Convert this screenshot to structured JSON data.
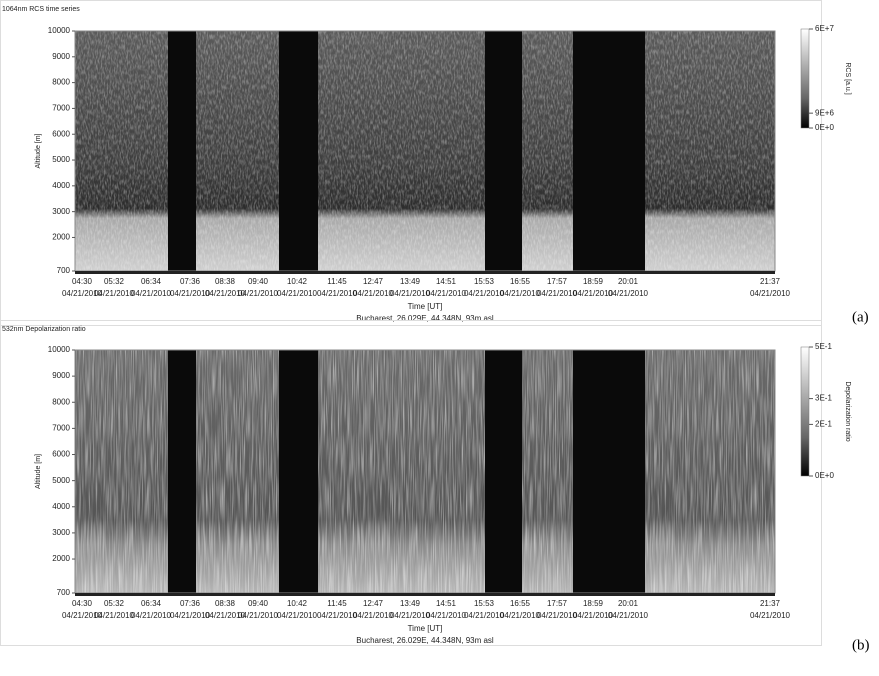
{
  "chart_data": [
    {
      "type": "heatmap",
      "title": "1064nm RCS time series",
      "y_label": "Altitude [m]",
      "x_label": "Time [UT]",
      "subtitle": "Bucharest, 26.029E, 44.348N, 93m asl",
      "colorbar_label": "RCS [a.u.]",
      "panel_label": "(a)",
      "ylim": [
        700,
        10000
      ],
      "yticks": [
        700,
        2000,
        3000,
        4000,
        5000,
        6000,
        7000,
        8000,
        9000,
        10000
      ],
      "colorbar_lim": [
        0,
        60000000
      ],
      "colorbar_ticks": [
        {
          "value": 60000000,
          "label": "6E+7"
        },
        {
          "value": 9000000,
          "label": "9E+6"
        },
        {
          "value": 0,
          "label": "0E+0"
        }
      ],
      "x_ticks": [
        {
          "time": "04:30",
          "date": "04/21/2010"
        },
        {
          "time": "05:32",
          "date": "04/21/2010"
        },
        {
          "time": "06:34",
          "date": "04/21/2010"
        },
        {
          "time": "07:36",
          "date": "04/21/2010"
        },
        {
          "time": "08:38",
          "date": "04/21/2010"
        },
        {
          "time": "09:40",
          "date": "04/21/2010"
        },
        {
          "time": "10:42",
          "date": "04/21/2010"
        },
        {
          "time": "11:45",
          "date": "04/21/2010"
        },
        {
          "time": "12:47",
          "date": "04/21/2010"
        },
        {
          "time": "13:49",
          "date": "04/21/2010"
        },
        {
          "time": "14:51",
          "date": "04/21/2010"
        },
        {
          "time": "15:53",
          "date": "04/21/2010"
        },
        {
          "time": "16:55",
          "date": "04/21/2010"
        },
        {
          "time": "17:57",
          "date": "04/21/2010"
        },
        {
          "time": "18:59",
          "date": "04/21/2010"
        },
        {
          "time": "20:01",
          "date": "04/21/2010"
        },
        {
          "time": "21:37",
          "date": "04/21/2010"
        }
      ]
    },
    {
      "type": "heatmap",
      "title": "532nm Depolarization ratio",
      "y_label": "Altitude [m]",
      "x_label": "Time [UT]",
      "subtitle": "Bucharest, 26.029E, 44.348N, 93m asl",
      "colorbar_label": "Depolarization ratio",
      "panel_label": "(b)",
      "ylim": [
        700,
        10000
      ],
      "yticks": [
        700,
        2000,
        3000,
        4000,
        5000,
        6000,
        7000,
        8000,
        9000,
        10000
      ],
      "colorbar_lim": [
        0,
        0.5
      ],
      "colorbar_ticks": [
        {
          "value": 0.5,
          "label": "5E-1"
        },
        {
          "value": 0.3,
          "label": "3E-1"
        },
        {
          "value": 0.2,
          "label": "2E-1"
        },
        {
          "value": 0,
          "label": "0E+0"
        }
      ],
      "x_ticks": [
        {
          "time": "04:30",
          "date": "04/21/2010"
        },
        {
          "time": "05:32",
          "date": "04/21/2010"
        },
        {
          "time": "06:34",
          "date": "04/21/2010"
        },
        {
          "time": "07:36",
          "date": "04/21/2010"
        },
        {
          "time": "08:38",
          "date": "04/21/2010"
        },
        {
          "time": "09:40",
          "date": "04/21/2010"
        },
        {
          "time": "10:42",
          "date": "04/21/2010"
        },
        {
          "time": "11:45",
          "date": "04/21/2010"
        },
        {
          "time": "12:47",
          "date": "04/21/2010"
        },
        {
          "time": "13:49",
          "date": "04/21/2010"
        },
        {
          "time": "14:51",
          "date": "04/21/2010"
        },
        {
          "time": "15:53",
          "date": "04/21/2010"
        },
        {
          "time": "16:55",
          "date": "04/21/2010"
        },
        {
          "time": "17:57",
          "date": "04/21/2010"
        },
        {
          "time": "18:59",
          "date": "04/21/2010"
        },
        {
          "time": "20:01",
          "date": "04/21/2010"
        },
        {
          "time": "21:37",
          "date": "04/21/2010"
        }
      ]
    }
  ]
}
